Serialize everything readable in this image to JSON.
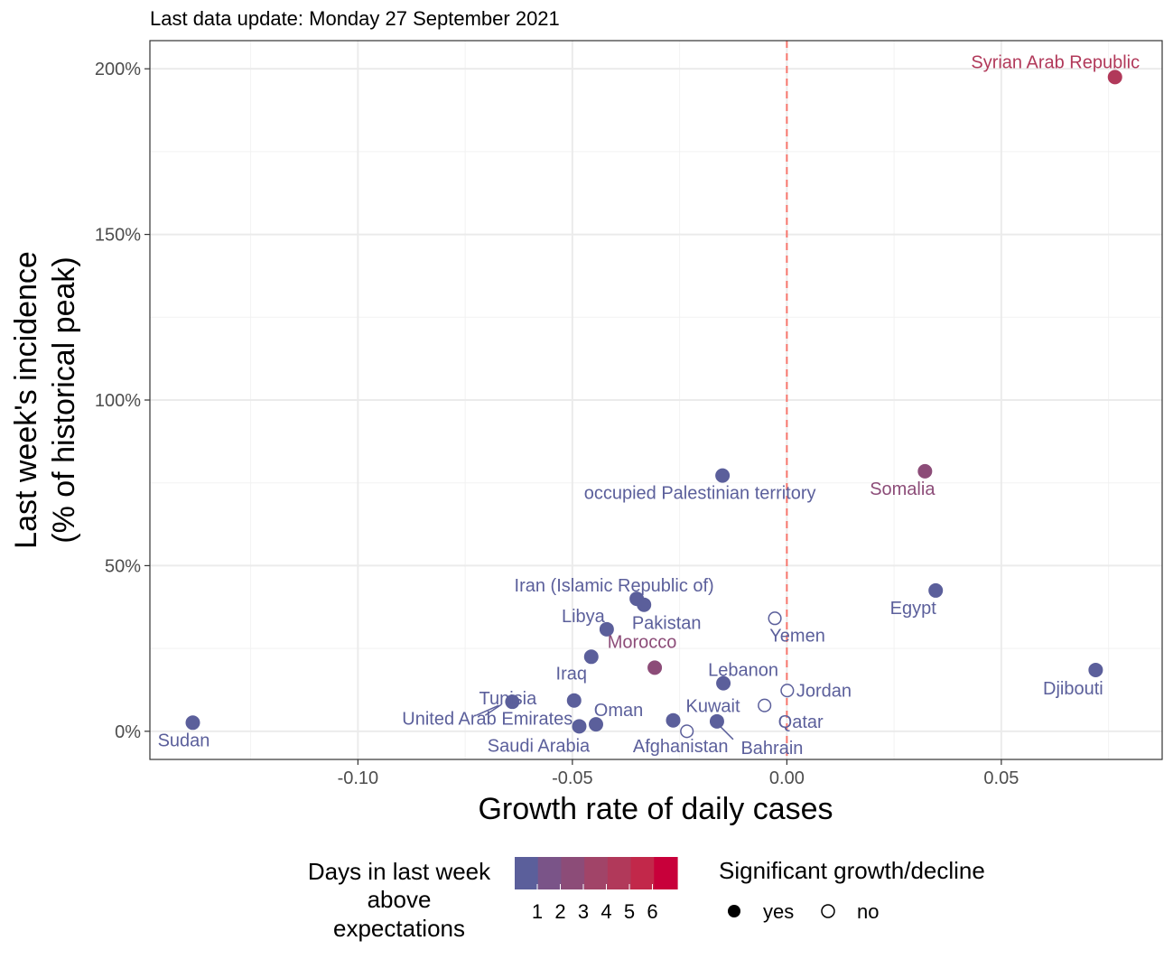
{
  "chart_data": {
    "type": "scatter",
    "subtitle": "Last data update: Monday 27 September 2021",
    "xlabel": "Growth rate of daily cases",
    "ylabel_lines": [
      "Last week's incidence",
      "(% of historical peak)"
    ],
    "xlim": [
      -0.1485,
      0.0875
    ],
    "ylim": [
      -8.5,
      208.5
    ],
    "x_ticks": [
      -0.1,
      -0.05,
      0.0,
      0.05
    ],
    "x_tick_labels": [
      "-0.10",
      "-0.05",
      "0.00",
      "0.05"
    ],
    "y_ticks": [
      0,
      50,
      100,
      150,
      200
    ],
    "y_tick_labels": [
      "0%",
      "50%",
      "100%",
      "150%",
      "200%"
    ],
    "reference_line_x": 0,
    "grid": true,
    "color_scale": {
      "title_lines": [
        "Days in last week",
        "above",
        "expectations"
      ],
      "colors": [
        "#5b5f9b",
        "#7a5488",
        "#8c4c78",
        "#a14468",
        "#b1395a",
        "#c2284a",
        "#c8003a"
      ],
      "tick_labels": [
        "1",
        "2",
        "3",
        "4",
        "5",
        "6"
      ]
    },
    "shape_legend": {
      "title": "Significant growth/decline",
      "items": [
        "yes",
        "no"
      ]
    },
    "points": [
      {
        "country": "Syrian Arab Republic",
        "x": 0.0765,
        "y": 197.5,
        "sig": true,
        "days": 4
      },
      {
        "country": "Somalia",
        "x": 0.0322,
        "y": 78.5,
        "sig": true,
        "days": 2
      },
      {
        "country": "occupied Palestinian territory",
        "x": -0.015,
        "y": 77.2,
        "sig": true,
        "days": 0
      },
      {
        "country": "Egypt",
        "x": 0.0347,
        "y": 42.5,
        "sig": true,
        "days": 0
      },
      {
        "country": "Iran (Islamic Republic of)",
        "x": -0.035,
        "y": 40.0,
        "sig": true,
        "days": 0
      },
      {
        "country": "Pakistan",
        "x": -0.0333,
        "y": 38.2,
        "sig": true,
        "days": 0
      },
      {
        "country": "Yemen",
        "x": -0.0028,
        "y": 34.1,
        "sig": false,
        "days": 0
      },
      {
        "country": "Libya",
        "x": -0.042,
        "y": 30.8,
        "sig": true,
        "days": 0
      },
      {
        "country": "Iraq",
        "x": -0.0456,
        "y": 22.5,
        "sig": true,
        "days": 0
      },
      {
        "country": "Morocco",
        "x": -0.0308,
        "y": 19.2,
        "sig": true,
        "days": 2
      },
      {
        "country": "Djibouti",
        "x": 0.072,
        "y": 18.5,
        "sig": true,
        "days": 0
      },
      {
        "country": "Lebanon",
        "x": -0.0148,
        "y": 14.5,
        "sig": true,
        "days": 0
      },
      {
        "country": "Jordan",
        "x": 0.0001,
        "y": 12.3,
        "sig": false,
        "days": 0
      },
      {
        "country": "Tunisia",
        "x": -0.064,
        "y": 8.9,
        "sig": true,
        "days": 0
      },
      {
        "country": "United Arab Emirates",
        "x": -0.0496,
        "y": 9.3,
        "sig": true,
        "days": 0
      },
      {
        "country": "Qatar",
        "x": -0.0052,
        "y": 7.8,
        "sig": false,
        "days": 0
      },
      {
        "country": "Kuwait",
        "x": -0.0265,
        "y": 3.3,
        "sig": true,
        "days": 0
      },
      {
        "country": "Bahrain",
        "x": -0.0163,
        "y": 3.0,
        "sig": true,
        "days": 0
      },
      {
        "country": "Sudan",
        "x": -0.1385,
        "y": 2.6,
        "sig": true,
        "days": 0
      },
      {
        "country": "Oman",
        "x": -0.0445,
        "y": 2.1,
        "sig": true,
        "days": 0
      },
      {
        "country": "Saudi Arabia",
        "x": -0.0484,
        "y": 1.5,
        "sig": true,
        "days": 0
      },
      {
        "country": "Afghanistan",
        "x": -0.0233,
        "y": 0.0,
        "sig": false,
        "days": 0
      }
    ]
  }
}
